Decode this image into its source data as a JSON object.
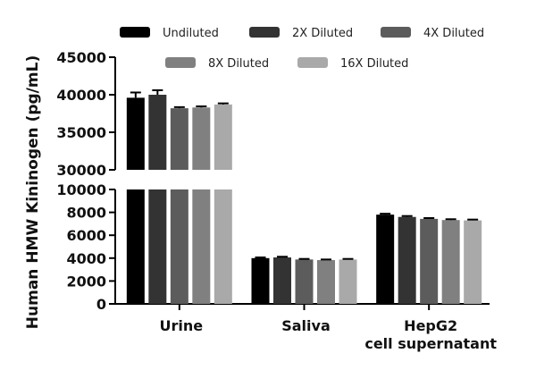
{
  "chart_data": {
    "type": "bar",
    "ylabel": "Human HMW Kininogen (pg/mL)",
    "categories": [
      {
        "lines": [
          "Urine"
        ]
      },
      {
        "lines": [
          "Saliva"
        ]
      },
      {
        "lines": [
          "HepG2",
          "cell supernatant"
        ]
      }
    ],
    "series": [
      {
        "name": "Undiluted",
        "color": "#000000",
        "values": [
          39600,
          4000,
          7800
        ],
        "errors": [
          700,
          60,
          80
        ]
      },
      {
        "name": "2X Diluted",
        "color": "#333333",
        "values": [
          40000,
          4060,
          7600
        ],
        "errors": [
          600,
          60,
          80
        ]
      },
      {
        "name": "4X Diluted",
        "color": "#5c5c5c",
        "values": [
          38200,
          3880,
          7430
        ],
        "errors": [
          150,
          50,
          70
        ]
      },
      {
        "name": "8X Diluted",
        "color": "#808080",
        "values": [
          38300,
          3830,
          7330
        ],
        "errors": [
          150,
          50,
          70
        ]
      },
      {
        "name": "16X Diluted",
        "color": "#a9a9a9",
        "values": [
          38700,
          3880,
          7300
        ],
        "errors": [
          150,
          50,
          70
        ]
      }
    ],
    "y_segments": [
      {
        "ylim": [
          0,
          10000
        ],
        "ticks": [
          0,
          2000,
          4000,
          6000,
          8000,
          10000
        ]
      },
      {
        "ylim": [
          30000,
          45000
        ],
        "ticks": [
          30000,
          35000,
          40000,
          45000
        ]
      }
    ],
    "legend_placement": "top",
    "grid": false
  }
}
